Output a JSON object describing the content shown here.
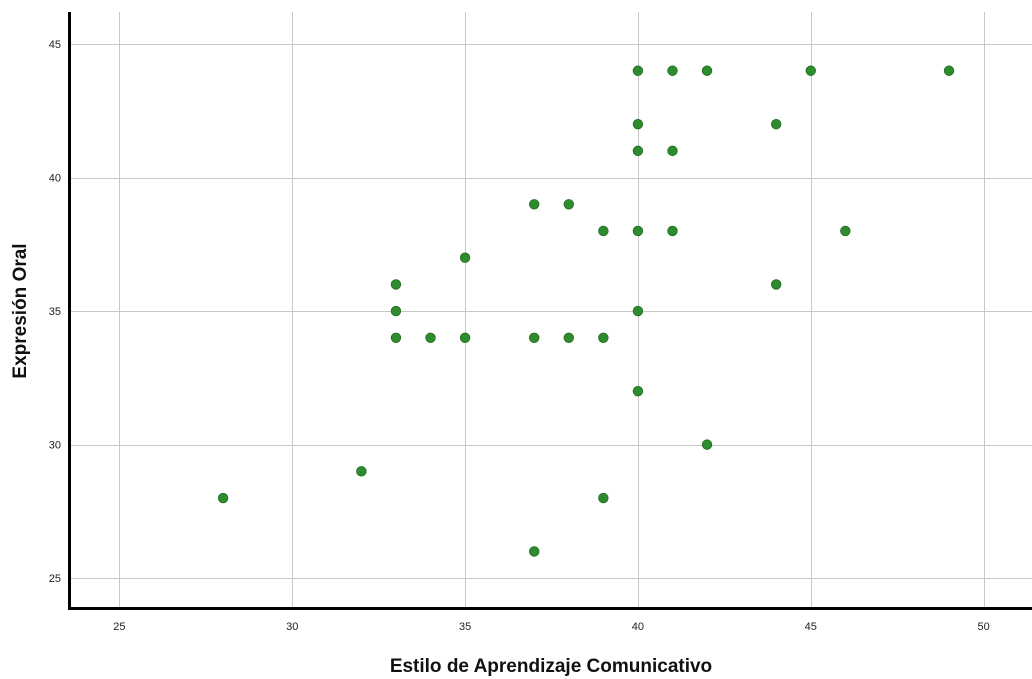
{
  "chart_data": {
    "type": "scatter",
    "title": "",
    "xlabel": "Estilo de Aprendizaje Comunicativo",
    "ylabel": "Expresión Oral",
    "xlim": [
      23.6,
      51.4
    ],
    "ylim": [
      23.92,
      46.2
    ],
    "xticks": [
      25,
      30,
      35,
      40,
      45,
      50
    ],
    "yticks": [
      25,
      30,
      35,
      40,
      45
    ],
    "xtick_labels": [
      "25",
      "30",
      "35",
      "40",
      "45",
      "50"
    ],
    "ytick_labels": [
      "25",
      "30",
      "35",
      "40",
      "45"
    ],
    "grid": true,
    "marker_color": "#2e8b2e",
    "points": [
      {
        "x": 28,
        "y": 28
      },
      {
        "x": 32,
        "y": 29
      },
      {
        "x": 33,
        "y": 36
      },
      {
        "x": 33,
        "y": 35
      },
      {
        "x": 33,
        "y": 34
      },
      {
        "x": 34,
        "y": 34
      },
      {
        "x": 35,
        "y": 37
      },
      {
        "x": 35,
        "y": 34
      },
      {
        "x": 37,
        "y": 39
      },
      {
        "x": 37,
        "y": 34
      },
      {
        "x": 37,
        "y": 26
      },
      {
        "x": 38,
        "y": 39
      },
      {
        "x": 38,
        "y": 34
      },
      {
        "x": 39,
        "y": 38
      },
      {
        "x": 39,
        "y": 34
      },
      {
        "x": 39,
        "y": 28
      },
      {
        "x": 40,
        "y": 44
      },
      {
        "x": 40,
        "y": 42
      },
      {
        "x": 40,
        "y": 41
      },
      {
        "x": 40,
        "y": 38
      },
      {
        "x": 40,
        "y": 35
      },
      {
        "x": 40,
        "y": 32
      },
      {
        "x": 41,
        "y": 44
      },
      {
        "x": 41,
        "y": 41
      },
      {
        "x": 41,
        "y": 38
      },
      {
        "x": 42,
        "y": 44
      },
      {
        "x": 42,
        "y": 30
      },
      {
        "x": 44,
        "y": 42
      },
      {
        "x": 44,
        "y": 36
      },
      {
        "x": 45,
        "y": 44
      },
      {
        "x": 46,
        "y": 38
      },
      {
        "x": 49,
        "y": 44
      }
    ]
  }
}
